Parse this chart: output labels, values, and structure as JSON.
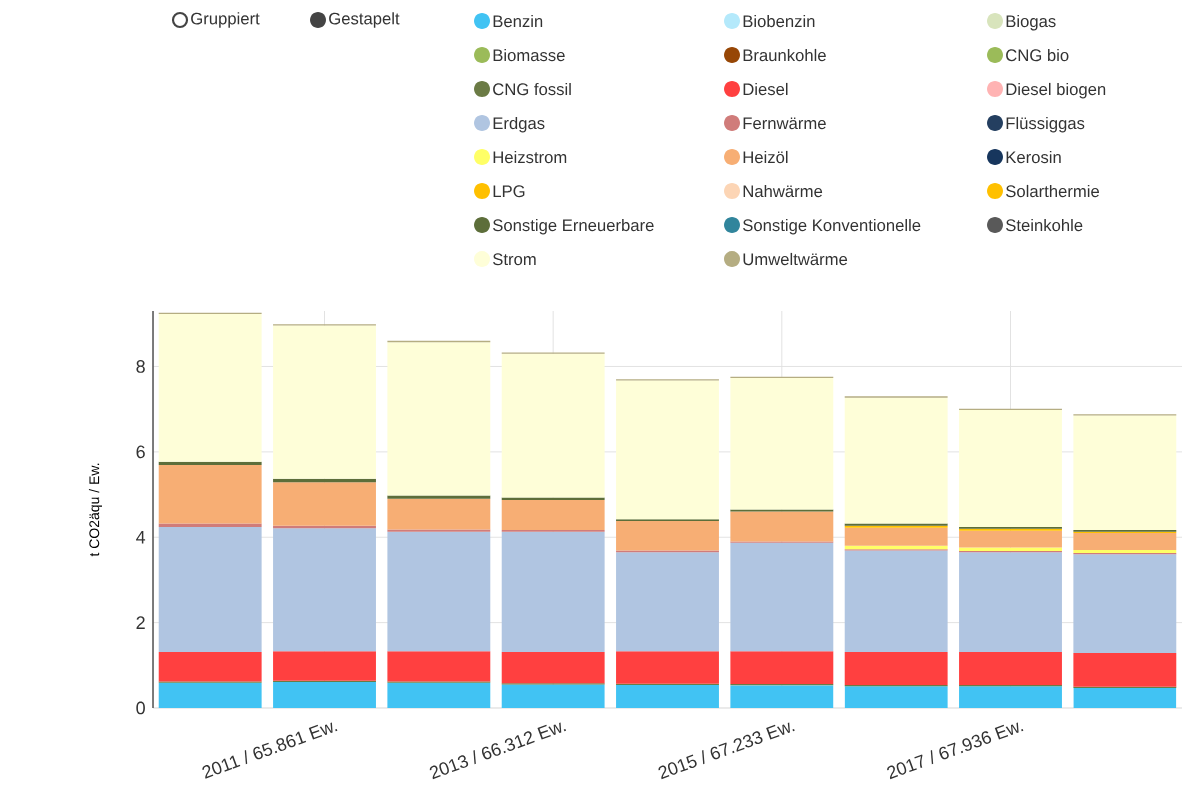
{
  "chart_data": {
    "type": "bar",
    "stacked": true,
    "ylabel": "t CO2äqu / Ew.",
    "categories": [
      null,
      "2011 / 65.861 Ew.",
      null,
      "2013 / 66.312 Ew.",
      null,
      "2015 / 67.233 Ew.",
      null,
      "2017 / 67.936 Ew.",
      null
    ],
    "ylim": [
      0,
      9.3
    ],
    "yticks": [
      0,
      2,
      4,
      6,
      8
    ],
    "grid": true,
    "legend": "top",
    "annotations": [
      "Gruppiert",
      "Gestapelt"
    ],
    "series": [
      {
        "name": "Benzin",
        "color": "#41c3f3",
        "values": [
          0.59,
          0.61,
          0.59,
          0.55,
          0.54,
          0.53,
          0.51,
          0.51,
          0.47
        ]
      },
      {
        "name": "Biobenzin",
        "color": "#b4e9fb",
        "values": [
          null,
          null,
          null,
          null,
          null,
          null,
          null,
          null,
          null
        ]
      },
      {
        "name": "Biogas",
        "color": "#d8e4bc",
        "values": [
          null,
          null,
          null,
          null,
          null,
          null,
          null,
          null,
          null
        ]
      },
      {
        "name": "Biomasse",
        "color": "#9bbb59",
        "values": [
          null,
          null,
          null,
          null,
          null,
          null,
          null,
          null,
          null
        ]
      },
      {
        "name": "Braunkohle",
        "color": "#974706",
        "values": [
          null,
          null,
          null,
          null,
          null,
          null,
          null,
          null,
          null
        ]
      },
      {
        "name": "CNG bio",
        "color": "#9bbb59",
        "values": [
          null,
          null,
          null,
          null,
          null,
          null,
          null,
          null,
          null
        ]
      },
      {
        "name": "CNG fossil",
        "color": "#6b7b45",
        "values": [
          0.03,
          0.03,
          0.03,
          0.03,
          0.03,
          0.03,
          0.03,
          0.03,
          0.03
        ]
      },
      {
        "name": "Diesel",
        "color": "#ff4040",
        "values": [
          0.69,
          0.69,
          0.71,
          0.73,
          0.76,
          0.77,
          0.77,
          0.77,
          0.79
        ]
      },
      {
        "name": "Diesel biogen",
        "color": "#ffb3b3",
        "values": [
          null,
          null,
          null,
          null,
          null,
          null,
          null,
          null,
          null
        ]
      },
      {
        "name": "Erdgas",
        "color": "#b0c5e1",
        "values": [
          2.93,
          2.88,
          2.8,
          2.82,
          2.32,
          2.54,
          2.38,
          2.34,
          2.31
        ]
      },
      {
        "name": "Fernwärme",
        "color": "#d07c7a",
        "values": [
          0.08,
          0.06,
          0.05,
          0.04,
          0.04,
          0.03,
          0.03,
          0.03,
          0.03
        ]
      },
      {
        "name": "Flüssiggas",
        "color": "#243f60",
        "values": [
          null,
          null,
          null,
          null,
          null,
          null,
          null,
          null,
          null
        ]
      },
      {
        "name": "Heizstrom",
        "color": "#ffff66",
        "values": [
          null,
          null,
          null,
          null,
          null,
          null,
          0.08,
          0.08,
          0.07
        ]
      },
      {
        "name": "Heizöl",
        "color": "#f7ae74",
        "values": [
          1.37,
          1.02,
          0.72,
          0.7,
          0.69,
          0.7,
          0.42,
          0.39,
          0.4
        ]
      },
      {
        "name": "Kerosin",
        "color": "#17365d",
        "values": [
          null,
          null,
          null,
          null,
          null,
          null,
          null,
          null,
          null
        ]
      },
      {
        "name": "LPG",
        "color": "#ffc000",
        "values": [
          null,
          null,
          null,
          null,
          null,
          null,
          null,
          null,
          null
        ]
      },
      {
        "name": "Nahwärme",
        "color": "#fcd5b5",
        "values": [
          null,
          null,
          null,
          null,
          null,
          null,
          null,
          null,
          null
        ]
      },
      {
        "name": "Solarthermie",
        "color": "#ffc000",
        "values": [
          null,
          null,
          null,
          null,
          null,
          null,
          0.05,
          0.05,
          0.03
        ]
      },
      {
        "name": "Sonstige Erneuerbare",
        "color": "#5d6e3a",
        "values": [
          0.08,
          0.08,
          0.08,
          0.06,
          0.04,
          0.05,
          0.05,
          0.04,
          0.04
        ]
      },
      {
        "name": "Sonstige Konventionelle",
        "color": "#31859c",
        "values": [
          null,
          null,
          null,
          null,
          null,
          null,
          null,
          null,
          null
        ]
      },
      {
        "name": "Steinkohle",
        "color": "#595959",
        "values": [
          null,
          null,
          null,
          null,
          null,
          null,
          null,
          null,
          null
        ]
      },
      {
        "name": "Strom",
        "color": "#fefed8",
        "values": [
          3.46,
          3.59,
          3.59,
          3.37,
          3.25,
          3.08,
          2.95,
          2.74,
          2.68
        ]
      },
      {
        "name": "Umweltwärme",
        "color": "#b5ad82",
        "values": [
          0.03,
          0.03,
          0.03,
          0.03,
          0.03,
          0.03,
          0.03,
          0.03,
          0.03
        ]
      }
    ]
  }
}
